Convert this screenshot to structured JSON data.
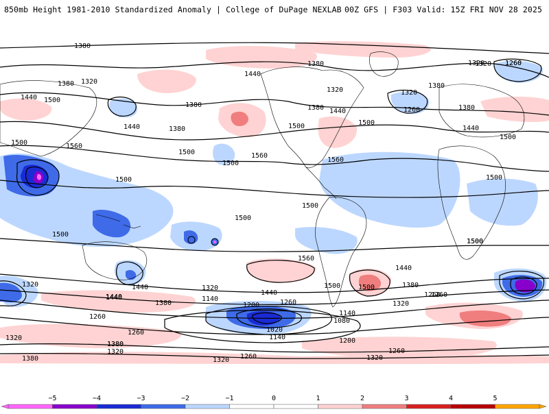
{
  "header": {
    "title": "850mb Height 1981-2010 Standardized Anomaly | College of DuPage NEXLAB",
    "run_info": "00Z GFS | F303 Valid: 15Z FRI NOV 28 2025"
  },
  "colors": {
    "neg5": "#ff66ff",
    "neg4": "#8800cc",
    "neg3": "#1a2bd4",
    "neg2": "#3f6be8",
    "neg1": "#bcd7ff",
    "zero": "#ffffff",
    "pos1": "#ffd3d3",
    "pos2": "#f07e7e",
    "pos3": "#d92020",
    "pos4": "#b80000",
    "pos5": "#ffa500"
  },
  "contour_labels": [
    {
      "id": "c1380-a",
      "text": "1380"
    },
    {
      "id": "c1380-b",
      "text": "1380"
    },
    {
      "id": "c1320-a",
      "text": "1320"
    },
    {
      "id": "c1440-a",
      "text": "1440"
    },
    {
      "id": "c1500-a",
      "text": "1500"
    },
    {
      "id": "c1500-b",
      "text": "1500"
    },
    {
      "id": "c1560-a",
      "text": "1560"
    },
    {
      "id": "c1380-c",
      "text": "1380"
    },
    {
      "id": "c1440-b",
      "text": "1440"
    },
    {
      "id": "c1380-d",
      "text": "1380"
    },
    {
      "id": "c1500-c",
      "text": "1500"
    },
    {
      "id": "c1560-b",
      "text": "1560"
    },
    {
      "id": "c1440-c",
      "text": "1440"
    },
    {
      "id": "c1380-e",
      "text": "1380"
    },
    {
      "id": "c1320-b",
      "text": "1320"
    },
    {
      "id": "c1380-f",
      "text": "1380"
    },
    {
      "id": "c1440-d",
      "text": "1440"
    },
    {
      "id": "c1500-d",
      "text": "1500"
    },
    {
      "id": "c1560-c",
      "text": "1560"
    },
    {
      "id": "c1500-e",
      "text": "1500"
    },
    {
      "id": "c1320-c",
      "text": "1320"
    },
    {
      "id": "c1260-a",
      "text": "1260"
    },
    {
      "id": "c1320-d",
      "text": "1320"
    },
    {
      "id": "c1380-g",
      "text": "1380"
    },
    {
      "id": "c1260-b",
      "text": "1260"
    },
    {
      "id": "c1380-h",
      "text": "1380"
    },
    {
      "id": "c1440-e",
      "text": "1440"
    },
    {
      "id": "c1500-f",
      "text": "1500"
    },
    {
      "id": "c1500-g",
      "text": "1500"
    },
    {
      "id": "c1500-h",
      "text": "1500"
    },
    {
      "id": "c1500-i",
      "text": "1500"
    },
    {
      "id": "c1500-j",
      "text": "1500"
    },
    {
      "id": "c1500-k",
      "text": "1500"
    },
    {
      "id": "c1500-l",
      "text": "1500"
    },
    {
      "id": "c1560-d",
      "text": "1560"
    },
    {
      "id": "c1500-m",
      "text": "1500"
    },
    {
      "id": "c1440-f",
      "text": "1440"
    },
    {
      "id": "c1440-g",
      "text": "1440"
    },
    {
      "id": "c1380-i",
      "text": "1380"
    },
    {
      "id": "c1320-e",
      "text": "1320"
    },
    {
      "id": "c1260-c",
      "text": "1260"
    },
    {
      "id": "c1320-f",
      "text": "1320"
    },
    {
      "id": "c1380-j",
      "text": "1380"
    },
    {
      "id": "c1440-h",
      "text": "1440"
    },
    {
      "id": "c1320-g",
      "text": "1320"
    },
    {
      "id": "c1140-a",
      "text": "1140"
    },
    {
      "id": "c1200-a",
      "text": "1200"
    },
    {
      "id": "c1260-d",
      "text": "1260"
    },
    {
      "id": "c1440-i",
      "text": "1440"
    },
    {
      "id": "c1500-n",
      "text": "1500"
    },
    {
      "id": "c1500-o",
      "text": "1500"
    },
    {
      "id": "c1440-j",
      "text": "1440"
    },
    {
      "id": "c1380-k",
      "text": "1380"
    },
    {
      "id": "c1260-e",
      "text": "1260"
    },
    {
      "id": "c1320-h",
      "text": "1320"
    },
    {
      "id": "c1140-b",
      "text": "1140"
    },
    {
      "id": "c1080-a",
      "text": "1080"
    },
    {
      "id": "c1020-a",
      "text": "1020"
    },
    {
      "id": "c1140-c",
      "text": "1140"
    },
    {
      "id": "c1200-b",
      "text": "1200"
    },
    {
      "id": "c1260-f",
      "text": "1260"
    },
    {
      "id": "c1320-i",
      "text": "1320"
    },
    {
      "id": "c1380-l",
      "text": "1380"
    },
    {
      "id": "c1320-j",
      "text": "1320"
    },
    {
      "id": "c1380-m",
      "text": "1380"
    },
    {
      "id": "c1260-g",
      "text": "1260"
    },
    {
      "id": "c1320-k",
      "text": "1320"
    },
    {
      "id": "c1260-h",
      "text": "1260"
    },
    {
      "id": "c1320-l",
      "text": "1320"
    },
    {
      "id": "c1260-i",
      "text": "1260"
    },
    {
      "id": "c1260-j",
      "text": "1260"
    },
    {
      "id": "c1500-p",
      "text": "1500"
    }
  ],
  "legend": {
    "ticks": [
      "−5",
      "−4",
      "−3",
      "−2",
      "−1",
      "0",
      "1",
      "2",
      "3",
      "4",
      "5"
    ]
  }
}
